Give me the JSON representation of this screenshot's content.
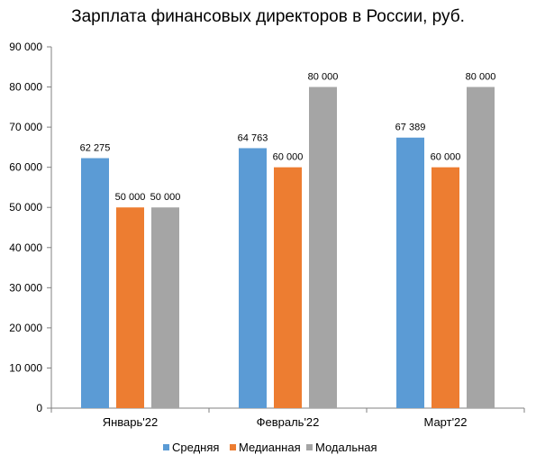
{
  "chart_data": {
    "type": "bar",
    "title": "Зарплата финансовых директоров в России, руб.",
    "xlabel": "",
    "ylabel": "",
    "categories": [
      "Январь'22",
      "Февраль'22",
      "Март'22"
    ],
    "series": [
      {
        "name": "Средняя",
        "color": "#5B9BD5",
        "values": [
          62275,
          64763,
          67389
        ],
        "labels": [
          "62 275",
          "64 763",
          "67 389"
        ]
      },
      {
        "name": "Медианная",
        "color": "#ED7D31",
        "values": [
          50000,
          60000,
          60000
        ],
        "labels": [
          "50 000",
          "60 000",
          "60 000"
        ]
      },
      {
        "name": "Модальная",
        "color": "#A5A5A5",
        "values": [
          50000,
          80000,
          80000
        ],
        "labels": [
          "50 000",
          "80 000",
          "80 000"
        ]
      }
    ],
    "ylim": [
      0,
      90000
    ],
    "yticks": [
      0,
      10000,
      20000,
      30000,
      40000,
      50000,
      60000,
      70000,
      80000,
      90000
    ],
    "ytick_labels": [
      "0",
      "10 000",
      "20 000",
      "30 000",
      "40 000",
      "50 000",
      "60 000",
      "70 000",
      "80 000",
      "90 000"
    ],
    "grid": false,
    "legend_position": "bottom"
  }
}
